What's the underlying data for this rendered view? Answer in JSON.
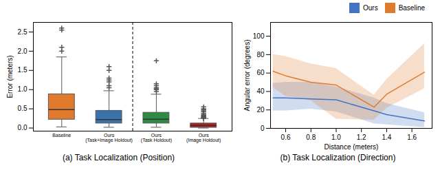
{
  "chart_data": [
    {
      "type": "box",
      "categories": [
        "Baseline",
        "Ours\n(Task+Image Holdout)",
        "Ours\n(Task Holdout)",
        "Ours\n(Image Holdout)"
      ],
      "whisker_low": [
        0.03,
        0.02,
        0.02,
        0.0
      ],
      "q1": [
        0.22,
        0.12,
        0.12,
        0.01
      ],
      "median": [
        0.48,
        0.22,
        0.23,
        0.07
      ],
      "q3": [
        0.88,
        0.45,
        0.4,
        0.12
      ],
      "whisker_high": [
        1.85,
        0.97,
        0.88,
        0.25
      ],
      "colors": [
        "#E07A2F",
        "#3A72AA",
        "#2E8B43",
        "#B22222"
      ],
      "outliers": [
        [
          2.0,
          2.1,
          2.55,
          2.6
        ],
        [
          1.5,
          1.6,
          1.05,
          1.1,
          1.2,
          1.25,
          1.3
        ],
        [
          1.75,
          1.1,
          1.15,
          1.05,
          0.95,
          1.0,
          1.02
        ],
        [
          0.55,
          0.5,
          0.48,
          0.45,
          0.42,
          0.38,
          0.35,
          0.33,
          0.31,
          0.3,
          0.28,
          0.27,
          0.26,
          0.25
        ]
      ],
      "divider_x": 2.5,
      "ylabel": "Error (meters)",
      "ylim": [
        -0.08,
        2.75
      ],
      "yticks": [
        {
          "value": 0,
          "label": "0.0"
        },
        0.5,
        {
          "value": 1,
          "label": "1.0"
        },
        1.5,
        {
          "value": 2,
          "label": "2.0"
        },
        2.5
      ],
      "grid": false,
      "caption": "(a) Task Localization (Position)"
    },
    {
      "type": "line",
      "x": [
        0.5,
        0.6,
        0.8,
        1.0,
        1.3,
        1.4,
        1.7
      ],
      "series": [
        {
          "name": "Ours",
          "color": "#4472C4",
          "values": [
            33,
            33,
            32,
            31,
            19,
            15,
            8
          ],
          "lower": [
            19,
            19,
            21,
            18,
            5,
            4,
            1
          ],
          "upper": [
            49,
            50,
            50,
            45,
            33,
            27,
            17
          ]
        },
        {
          "name": "Baseline",
          "color": "#E07A2F",
          "values": [
            62,
            57,
            50,
            47,
            23,
            37,
            61
          ],
          "lower": [
            44,
            35,
            30,
            10,
            9,
            22,
            43
          ],
          "upper": [
            80,
            78,
            70,
            65,
            36,
            53,
            92
          ]
        }
      ],
      "xlabel": "Distance (meters)",
      "ylabel": "Angular error (degrees)",
      "xlim": [
        0.48,
        1.76
      ],
      "xticks": [
        0.6,
        0.8,
        {
          "value": 1.0,
          "label": "1.0"
        },
        1.2,
        1.4,
        1.6
      ],
      "ylim": [
        0,
        115
      ],
      "yticks": [
        0,
        20,
        40,
        60,
        80,
        100
      ],
      "grid": false,
      "legend": "upper right",
      "caption": "(b) Task Localization (Direction)"
    }
  ]
}
